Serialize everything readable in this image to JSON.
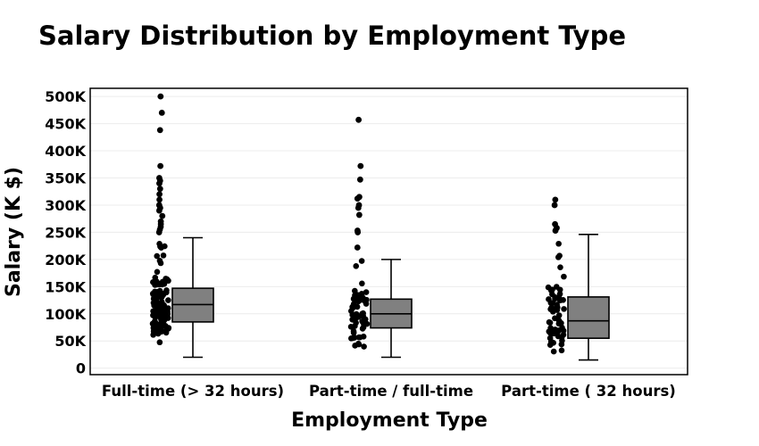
{
  "chart_data": {
    "type": "box",
    "title": "Salary Distribution by Employment Type",
    "xlabel": "Employment Type",
    "ylabel": "Salary (K $)",
    "ylim": [
      -12000,
      515000
    ],
    "y_ticks": [
      0,
      50000,
      100000,
      150000,
      200000,
      250000,
      300000,
      350000,
      400000,
      450000,
      500000
    ],
    "y_tick_labels": [
      "0",
      "50K",
      "100K",
      "150K",
      "200K",
      "250K",
      "300K",
      "350K",
      "400K",
      "450K",
      "500K"
    ],
    "grid": true,
    "box_color": "#808080",
    "point_color": "#000000",
    "categories": [
      "Full-time (> 32 hours)",
      "Part-time / full-time",
      "Part-time ( 32 hours)"
    ],
    "boxes": [
      {
        "category": "Full-time (> 32 hours)",
        "whisker_low": 20000,
        "q1": 85000,
        "median": 117000,
        "q3": 147000,
        "whisker_high": 240000,
        "points_range": [
          25000,
          240000
        ],
        "points_density": 120,
        "outliers": [
          250000,
          255000,
          260000,
          265000,
          270000,
          280000,
          290000,
          295000,
          300000,
          310000,
          320000,
          330000,
          340000,
          345000,
          350000,
          372000,
          438000,
          470000,
          500000
        ]
      },
      {
        "category": "Part-time / full-time",
        "whisker_low": 20000,
        "q1": 74000,
        "median": 100000,
        "q3": 127000,
        "whisker_high": 200000,
        "points_range": [
          25000,
          200000
        ],
        "points_density": 55,
        "outliers": [
          222000,
          250000,
          253000,
          282000,
          295000,
          300000,
          312000,
          315000,
          347000,
          372000,
          457000
        ]
      },
      {
        "category": "Part-time ( 32 hours)",
        "whisker_low": 15000,
        "q1": 55000,
        "median": 87000,
        "q3": 131000,
        "whisker_high": 246000,
        "points_range": [
          25000,
          250000
        ],
        "points_density": 60,
        "outliers": [
          253000,
          258000,
          265000,
          300000,
          310000
        ]
      }
    ]
  }
}
